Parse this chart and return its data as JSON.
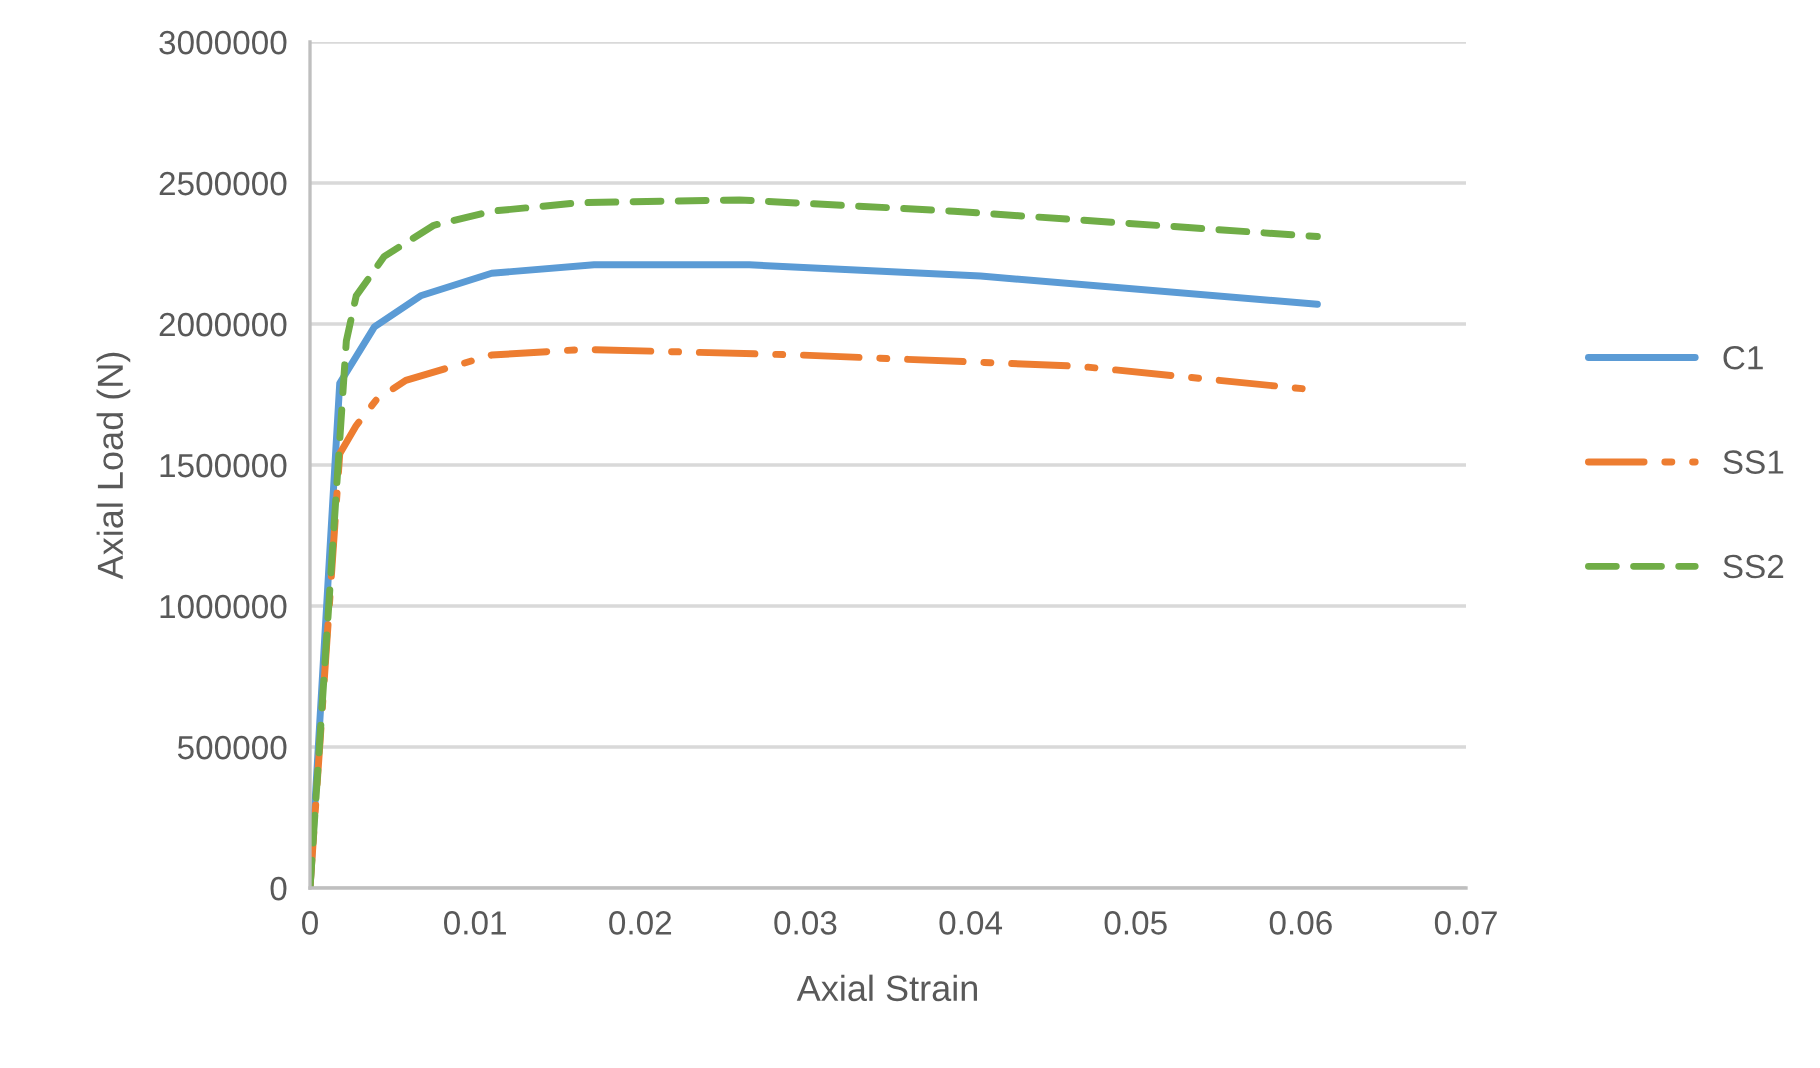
{
  "chart_data": {
    "type": "line",
    "xlabel": "Axial Strain",
    "ylabel": "Axial Load (N)",
    "xlim": [
      0,
      0.07
    ],
    "xticks": [
      0,
      0.01,
      0.02,
      0.03,
      0.04,
      0.05,
      0.06,
      0.07
    ],
    "ylim": [
      0,
      3000000
    ],
    "yticks": [
      0,
      500000,
      1000000,
      1500000,
      2000000,
      2500000,
      3000000
    ],
    "grid": "y",
    "legend": "right",
    "marker": "none",
    "series": [
      {
        "name": "C1",
        "color": "#5b9bd5",
        "line_style": "solid",
        "x": [
          0,
          0.0018,
          0.0039,
          0.0067,
          0.011,
          0.0172,
          0.0266,
          0.0406,
          0.061
        ],
        "values": [
          0,
          1790000,
          1990000,
          2100000,
          2180000,
          2210000,
          2210000,
          2170000,
          2070000
        ]
      },
      {
        "name": "SS1",
        "color": "#ed7d31",
        "line_style": "dashdot",
        "x": [
          0,
          0.0018,
          0.0028,
          0.004,
          0.0058,
          0.011,
          0.0166,
          0.0297,
          0.0466,
          0.0602
        ],
        "values": [
          0,
          1540000,
          1640000,
          1730000,
          1800000,
          1890000,
          1910000,
          1890000,
          1850000,
          1770000
        ]
      },
      {
        "name": "SS2",
        "color": "#70ad47",
        "line_style": "dashed",
        "x": [
          0,
          0.0022,
          0.0028,
          0.0045,
          0.0075,
          0.011,
          0.0163,
          0.026,
          0.039,
          0.061
        ],
        "values": [
          0,
          1940000,
          2100000,
          2240000,
          2350000,
          2400000,
          2430000,
          2440000,
          2400000,
          2310000
        ]
      }
    ]
  }
}
